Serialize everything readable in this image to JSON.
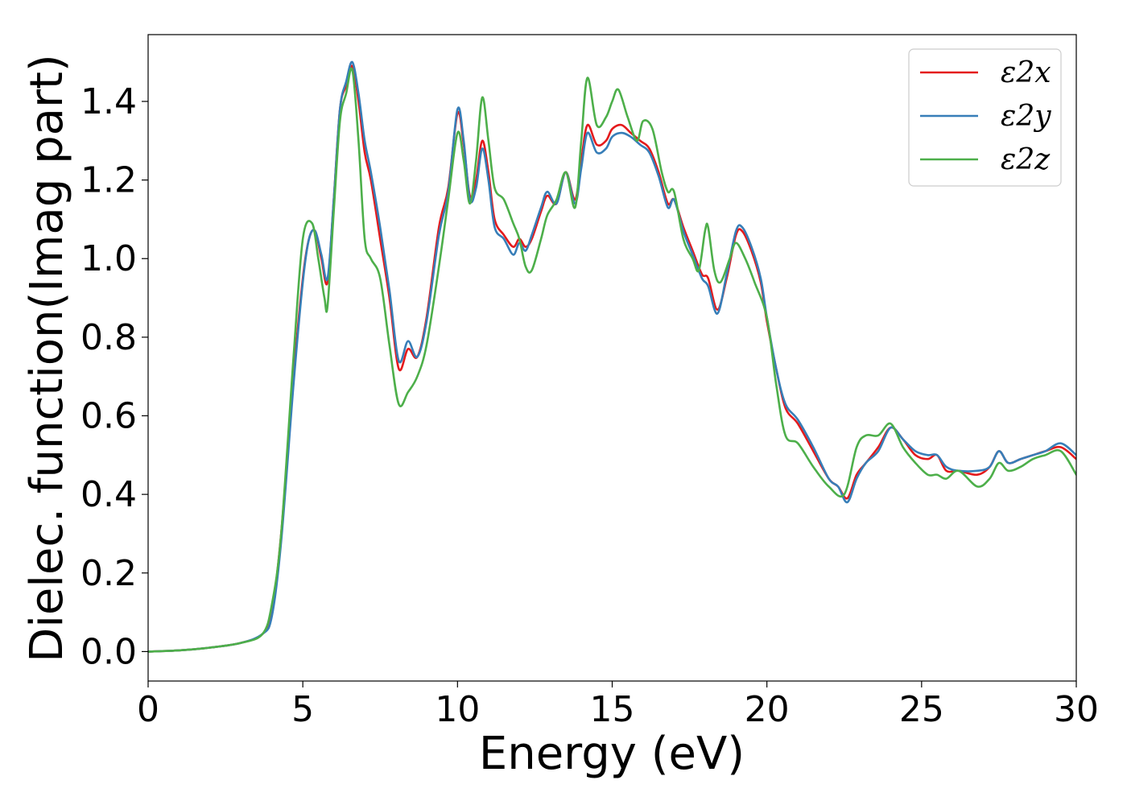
{
  "chart_data": {
    "type": "line",
    "title": "",
    "xlabel": "Energy (eV)",
    "ylabel": "Dielec. function(Imag part)",
    "xlim": [
      0,
      30
    ],
    "ylim": [
      -0.075,
      1.57
    ],
    "xticks": [
      0,
      5,
      10,
      15,
      20,
      25,
      30
    ],
    "xtick_labels": [
      "0",
      "5",
      "10",
      "15",
      "20",
      "25",
      "30"
    ],
    "yticks": [
      0.0,
      0.2,
      0.4,
      0.6,
      0.8,
      1.0,
      1.2,
      1.4
    ],
    "ytick_labels": [
      "0.0",
      "0.2",
      "0.4",
      "0.6",
      "0.8",
      "1.0",
      "1.2",
      "1.4"
    ],
    "grid": false,
    "legend_position": "top-right",
    "series": [
      {
        "name": "ε2x",
        "color": "#e41a1c",
        "points": [
          [
            0,
            0
          ],
          [
            1,
            0.003
          ],
          [
            2,
            0.01
          ],
          [
            3,
            0.022
          ],
          [
            3.7,
            0.045
          ],
          [
            4.0,
            0.1
          ],
          [
            4.3,
            0.3
          ],
          [
            4.7,
            0.7
          ],
          [
            5.0,
            0.95
          ],
          [
            5.2,
            1.05
          ],
          [
            5.4,
            1.07
          ],
          [
            5.6,
            1.0
          ],
          [
            5.8,
            0.94
          ],
          [
            6.0,
            1.15
          ],
          [
            6.2,
            1.38
          ],
          [
            6.4,
            1.44
          ],
          [
            6.6,
            1.49
          ],
          [
            6.8,
            1.4
          ],
          [
            7.0,
            1.27
          ],
          [
            7.2,
            1.2
          ],
          [
            7.5,
            1.05
          ],
          [
            7.8,
            0.9
          ],
          [
            8.1,
            0.72
          ],
          [
            8.4,
            0.77
          ],
          [
            8.7,
            0.75
          ],
          [
            9.0,
            0.85
          ],
          [
            9.4,
            1.08
          ],
          [
            9.7,
            1.18
          ],
          [
            10.0,
            1.37
          ],
          [
            10.2,
            1.29
          ],
          [
            10.4,
            1.16
          ],
          [
            10.6,
            1.2
          ],
          [
            10.8,
            1.3
          ],
          [
            11.0,
            1.22
          ],
          [
            11.2,
            1.1
          ],
          [
            11.5,
            1.06
          ],
          [
            11.8,
            1.03
          ],
          [
            12.0,
            1.05
          ],
          [
            12.2,
            1.03
          ],
          [
            12.4,
            1.05
          ],
          [
            12.7,
            1.12
          ],
          [
            12.9,
            1.16
          ],
          [
            13.2,
            1.14
          ],
          [
            13.5,
            1.22
          ],
          [
            13.8,
            1.15
          ],
          [
            14.0,
            1.25
          ],
          [
            14.2,
            1.34
          ],
          [
            14.5,
            1.29
          ],
          [
            14.8,
            1.3
          ],
          [
            15.0,
            1.33
          ],
          [
            15.3,
            1.34
          ],
          [
            15.6,
            1.32
          ],
          [
            15.9,
            1.3
          ],
          [
            16.2,
            1.28
          ],
          [
            16.5,
            1.22
          ],
          [
            16.8,
            1.14
          ],
          [
            17.0,
            1.15
          ],
          [
            17.3,
            1.08
          ],
          [
            17.6,
            1.02
          ],
          [
            17.9,
            0.96
          ],
          [
            18.1,
            0.95
          ],
          [
            18.4,
            0.87
          ],
          [
            18.7,
            0.95
          ],
          [
            19.0,
            1.06
          ],
          [
            19.2,
            1.07
          ],
          [
            19.5,
            1.02
          ],
          [
            19.8,
            0.94
          ],
          [
            20.0,
            0.84
          ],
          [
            20.3,
            0.72
          ],
          [
            20.6,
            0.62
          ],
          [
            21.0,
            0.58
          ],
          [
            21.5,
            0.51
          ],
          [
            22.0,
            0.44
          ],
          [
            22.3,
            0.42
          ],
          [
            22.6,
            0.39
          ],
          [
            22.9,
            0.45
          ],
          [
            23.2,
            0.48
          ],
          [
            23.6,
            0.52
          ],
          [
            24.0,
            0.57
          ],
          [
            24.4,
            0.54
          ],
          [
            24.8,
            0.5
          ],
          [
            25.2,
            0.49
          ],
          [
            25.5,
            0.5
          ],
          [
            25.8,
            0.46
          ],
          [
            26.2,
            0.46
          ],
          [
            26.8,
            0.45
          ],
          [
            27.2,
            0.47
          ],
          [
            27.5,
            0.51
          ],
          [
            27.8,
            0.48
          ],
          [
            28.2,
            0.49
          ],
          [
            28.6,
            0.5
          ],
          [
            29.0,
            0.51
          ],
          [
            29.5,
            0.52
          ],
          [
            30.0,
            0.49
          ]
        ]
      },
      {
        "name": "ε2y",
        "color": "#377eb8",
        "points": [
          [
            0,
            0
          ],
          [
            1,
            0.003
          ],
          [
            2,
            0.01
          ],
          [
            3,
            0.022
          ],
          [
            3.7,
            0.045
          ],
          [
            4.0,
            0.09
          ],
          [
            4.3,
            0.28
          ],
          [
            4.7,
            0.68
          ],
          [
            5.0,
            0.94
          ],
          [
            5.2,
            1.05
          ],
          [
            5.4,
            1.07
          ],
          [
            5.6,
            1.01
          ],
          [
            5.8,
            0.95
          ],
          [
            6.0,
            1.15
          ],
          [
            6.2,
            1.38
          ],
          [
            6.4,
            1.45
          ],
          [
            6.6,
            1.5
          ],
          [
            6.8,
            1.42
          ],
          [
            7.0,
            1.3
          ],
          [
            7.2,
            1.22
          ],
          [
            7.5,
            1.08
          ],
          [
            7.8,
            0.92
          ],
          [
            8.1,
            0.74
          ],
          [
            8.4,
            0.79
          ],
          [
            8.7,
            0.75
          ],
          [
            9.0,
            0.84
          ],
          [
            9.4,
            1.06
          ],
          [
            9.7,
            1.17
          ],
          [
            10.0,
            1.38
          ],
          [
            10.2,
            1.3
          ],
          [
            10.4,
            1.15
          ],
          [
            10.6,
            1.18
          ],
          [
            10.8,
            1.28
          ],
          [
            11.0,
            1.2
          ],
          [
            11.2,
            1.08
          ],
          [
            11.5,
            1.05
          ],
          [
            11.8,
            1.01
          ],
          [
            12.0,
            1.04
          ],
          [
            12.2,
            1.02
          ],
          [
            12.4,
            1.06
          ],
          [
            12.7,
            1.13
          ],
          [
            12.9,
            1.17
          ],
          [
            13.2,
            1.14
          ],
          [
            13.5,
            1.22
          ],
          [
            13.8,
            1.14
          ],
          [
            14.0,
            1.23
          ],
          [
            14.2,
            1.32
          ],
          [
            14.5,
            1.27
          ],
          [
            14.8,
            1.28
          ],
          [
            15.0,
            1.31
          ],
          [
            15.3,
            1.32
          ],
          [
            15.6,
            1.31
          ],
          [
            15.9,
            1.29
          ],
          [
            16.2,
            1.27
          ],
          [
            16.5,
            1.21
          ],
          [
            16.8,
            1.13
          ],
          [
            17.0,
            1.15
          ],
          [
            17.3,
            1.07
          ],
          [
            17.6,
            1.01
          ],
          [
            17.9,
            0.95
          ],
          [
            18.1,
            0.93
          ],
          [
            18.4,
            0.86
          ],
          [
            18.7,
            0.96
          ],
          [
            19.0,
            1.07
          ],
          [
            19.2,
            1.08
          ],
          [
            19.5,
            1.03
          ],
          [
            19.8,
            0.95
          ],
          [
            20.0,
            0.85
          ],
          [
            20.3,
            0.72
          ],
          [
            20.6,
            0.63
          ],
          [
            21.0,
            0.59
          ],
          [
            21.5,
            0.52
          ],
          [
            22.0,
            0.44
          ],
          [
            22.3,
            0.42
          ],
          [
            22.6,
            0.38
          ],
          [
            22.9,
            0.44
          ],
          [
            23.2,
            0.48
          ],
          [
            23.6,
            0.51
          ],
          [
            24.0,
            0.57
          ],
          [
            24.4,
            0.54
          ],
          [
            24.8,
            0.51
          ],
          [
            25.2,
            0.5
          ],
          [
            25.5,
            0.5
          ],
          [
            25.8,
            0.47
          ],
          [
            26.2,
            0.46
          ],
          [
            26.8,
            0.46
          ],
          [
            27.2,
            0.47
          ],
          [
            27.5,
            0.51
          ],
          [
            27.8,
            0.48
          ],
          [
            28.2,
            0.49
          ],
          [
            28.6,
            0.5
          ],
          [
            29.0,
            0.51
          ],
          [
            29.5,
            0.53
          ],
          [
            30.0,
            0.5
          ]
        ]
      },
      {
        "name": "ε2z",
        "color": "#4daf4a",
        "points": [
          [
            0,
            0
          ],
          [
            1,
            0.003
          ],
          [
            2,
            0.01
          ],
          [
            3,
            0.022
          ],
          [
            3.7,
            0.045
          ],
          [
            4.0,
            0.12
          ],
          [
            4.3,
            0.3
          ],
          [
            4.7,
            0.75
          ],
          [
            5.0,
            1.05
          ],
          [
            5.3,
            1.09
          ],
          [
            5.5,
            1.0
          ],
          [
            5.7,
            0.9
          ],
          [
            5.8,
            0.88
          ],
          [
            6.0,
            1.12
          ],
          [
            6.2,
            1.35
          ],
          [
            6.4,
            1.42
          ],
          [
            6.6,
            1.48
          ],
          [
            6.8,
            1.3
          ],
          [
            7.0,
            1.05
          ],
          [
            7.2,
            1.0
          ],
          [
            7.5,
            0.95
          ],
          [
            7.8,
            0.78
          ],
          [
            8.1,
            0.63
          ],
          [
            8.4,
            0.66
          ],
          [
            8.7,
            0.7
          ],
          [
            9.0,
            0.78
          ],
          [
            9.4,
            0.98
          ],
          [
            9.7,
            1.15
          ],
          [
            10.0,
            1.32
          ],
          [
            10.2,
            1.25
          ],
          [
            10.4,
            1.14
          ],
          [
            10.6,
            1.25
          ],
          [
            10.8,
            1.41
          ],
          [
            11.0,
            1.3
          ],
          [
            11.2,
            1.18
          ],
          [
            11.5,
            1.15
          ],
          [
            11.8,
            1.09
          ],
          [
            12.0,
            1.05
          ],
          [
            12.2,
            0.98
          ],
          [
            12.4,
            0.97
          ],
          [
            12.7,
            1.05
          ],
          [
            12.9,
            1.11
          ],
          [
            13.2,
            1.15
          ],
          [
            13.5,
            1.22
          ],
          [
            13.8,
            1.13
          ],
          [
            14.0,
            1.3
          ],
          [
            14.2,
            1.46
          ],
          [
            14.5,
            1.34
          ],
          [
            14.8,
            1.36
          ],
          [
            15.0,
            1.4
          ],
          [
            15.2,
            1.43
          ],
          [
            15.5,
            1.36
          ],
          [
            15.8,
            1.3
          ],
          [
            16.0,
            1.35
          ],
          [
            16.3,
            1.33
          ],
          [
            16.6,
            1.22
          ],
          [
            16.8,
            1.17
          ],
          [
            17.0,
            1.17
          ],
          [
            17.3,
            1.05
          ],
          [
            17.6,
            1.0
          ],
          [
            17.8,
            0.97
          ],
          [
            18.0,
            1.07
          ],
          [
            18.1,
            1.08
          ],
          [
            18.3,
            0.97
          ],
          [
            18.5,
            0.94
          ],
          [
            18.8,
            1.0
          ],
          [
            19.0,
            1.04
          ],
          [
            19.3,
            1.0
          ],
          [
            19.6,
            0.94
          ],
          [
            20.0,
            0.85
          ],
          [
            20.3,
            0.68
          ],
          [
            20.6,
            0.55
          ],
          [
            21.0,
            0.53
          ],
          [
            21.5,
            0.47
          ],
          [
            22.0,
            0.42
          ],
          [
            22.5,
            0.4
          ],
          [
            22.9,
            0.52
          ],
          [
            23.2,
            0.55
          ],
          [
            23.6,
            0.55
          ],
          [
            24.0,
            0.58
          ],
          [
            24.4,
            0.52
          ],
          [
            24.8,
            0.48
          ],
          [
            25.2,
            0.45
          ],
          [
            25.5,
            0.45
          ],
          [
            25.8,
            0.44
          ],
          [
            26.2,
            0.46
          ],
          [
            26.8,
            0.42
          ],
          [
            27.2,
            0.44
          ],
          [
            27.5,
            0.48
          ],
          [
            27.8,
            0.46
          ],
          [
            28.2,
            0.47
          ],
          [
            28.6,
            0.49
          ],
          [
            29.0,
            0.5
          ],
          [
            29.5,
            0.51
          ],
          [
            30.0,
            0.45
          ]
        ]
      }
    ]
  }
}
